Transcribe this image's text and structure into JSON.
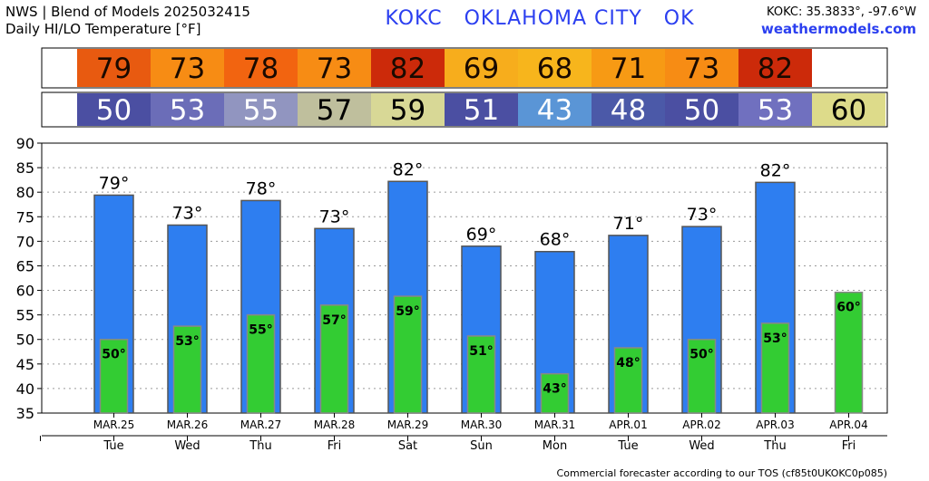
{
  "header": {
    "line1": "NWS | Blend of Models 2025032415",
    "line2": "Daily HI/LO Temperature [°F]",
    "station_title": "KOKC   OKLAHOMA CITY   OK",
    "coords": "KOKC: 35.3833°, -97.6°W",
    "site": "weathermodels.com"
  },
  "footer": "Commercial forecaster according to our TOS (cf85t0UKOKC0p085)",
  "colors": {
    "hi_bar": "#2e7ef0",
    "lo_bar": "#33cc33",
    "hi_strip": [
      "#e85a10",
      "#f78c14",
      "#f26410",
      "#f78c14",
      "#cc2a0a",
      "#f7ad1c",
      "#f7b51c",
      "#f79a14",
      "#f78c14",
      "#cc2a0a"
    ],
    "lo_strip": [
      "#4b4fa2",
      "#6b6db8",
      "#9195c0",
      "#bfbf9d",
      "#d8d896",
      "#4b4fa2",
      "#5a95d6",
      "#4b59a8",
      "#4b4fa2",
      "#7070bf",
      "#dddb8a"
    ]
  },
  "chart_data": {
    "type": "bar",
    "ylim": [
      35,
      90
    ],
    "yticks": [
      35,
      40,
      45,
      50,
      55,
      60,
      65,
      70,
      75,
      80,
      85,
      90
    ],
    "grid": true,
    "categories": [
      "MAR.25",
      "MAR.26",
      "MAR.27",
      "MAR.28",
      "MAR.29",
      "MAR.30",
      "MAR.31",
      "APR.01",
      "APR.02",
      "APR.03",
      "APR.04"
    ],
    "days": [
      "Tue",
      "Wed",
      "Thu",
      "Fri",
      "Sat",
      "Sun",
      "Mon",
      "Tue",
      "Wed",
      "Thu",
      "Fri"
    ],
    "hi_values": [
      79.4,
      73.3,
      78.3,
      72.6,
      82.2,
      69.0,
      67.9,
      71.2,
      73.0,
      82.0,
      null
    ],
    "lo_values": [
      50.0,
      52.7,
      55.0,
      57.0,
      58.8,
      50.7,
      43.0,
      48.3,
      50.0,
      53.3,
      59.6
    ],
    "hi_labels": [
      "79°",
      "73°",
      "78°",
      "73°",
      "82°",
      "69°",
      "68°",
      "71°",
      "73°",
      "82°",
      ""
    ],
    "lo_labels": [
      "50°",
      "53°",
      "55°",
      "57°",
      "59°",
      "51°",
      "43°",
      "48°",
      "50°",
      "53°",
      "60°"
    ],
    "hi_strip": [
      "79",
      "73",
      "78",
      "73",
      "82",
      "69",
      "68",
      "71",
      "73",
      "82",
      ""
    ],
    "lo_strip": [
      "50",
      "53",
      "55",
      "57",
      "59",
      "51",
      "43",
      "48",
      "50",
      "53",
      "60"
    ]
  }
}
